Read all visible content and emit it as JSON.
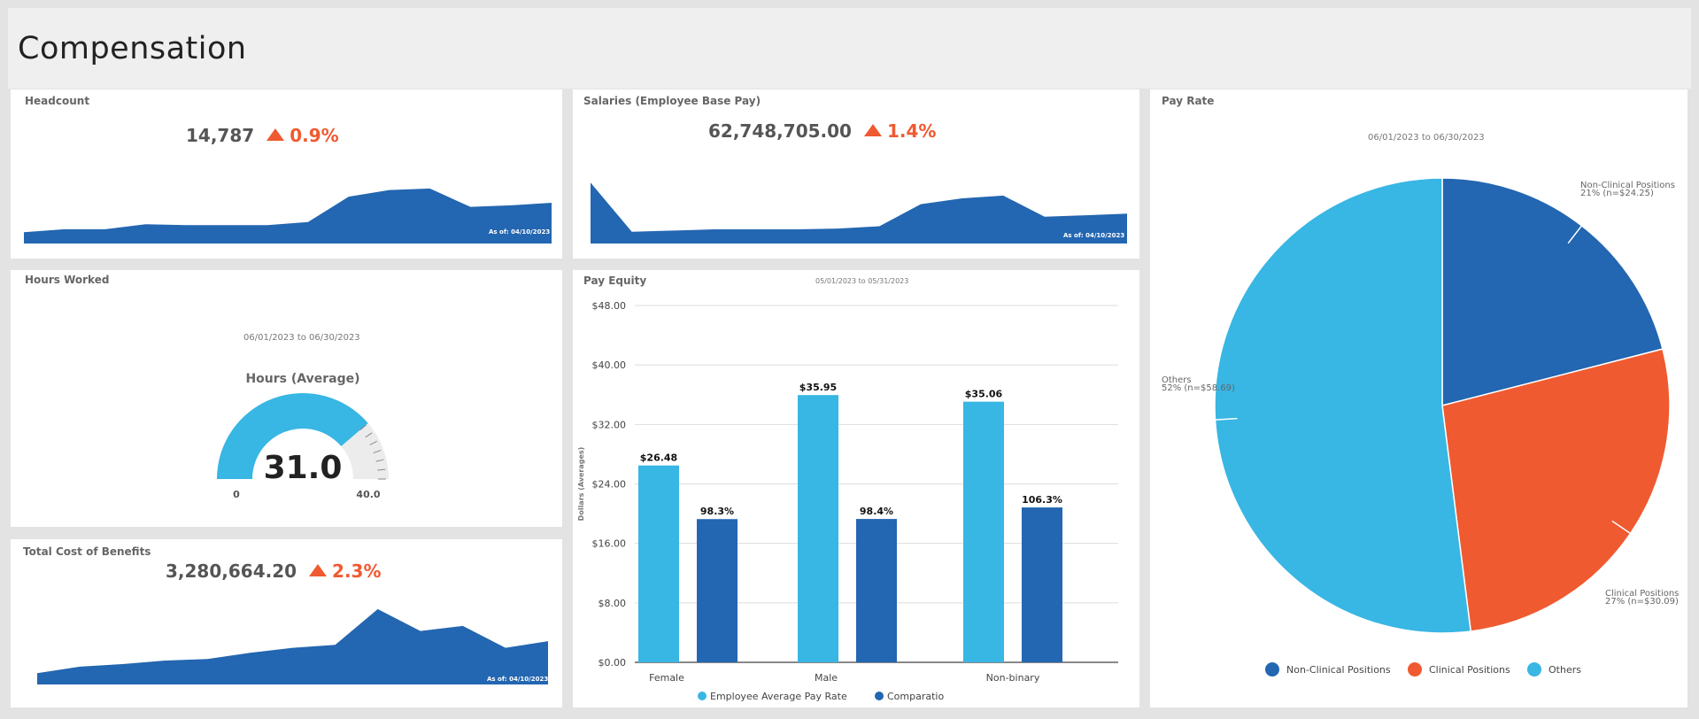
{
  "page": {
    "title": "Compensation"
  },
  "colors": {
    "dark_blue": "#2366b1",
    "light_blue": "#38b6e4",
    "orange": "#f05a30",
    "header_bg": "#efefef",
    "page_bg": "#e3e3e3"
  },
  "headcount": {
    "title": "Headcount",
    "value": "14,787",
    "change": "0.9%",
    "change_direction": "up",
    "as_of": "As of: 04/10/2023"
  },
  "salaries": {
    "title": "Salaries (Employee Base Pay)",
    "value": "62,748,705.00",
    "change": "1.4%",
    "change_direction": "up",
    "as_of": "As of: 04/10/2023"
  },
  "hours_worked": {
    "title": "Hours Worked",
    "date_range": "06/01/2023 to 06/30/2023",
    "gauge_title": "Hours (Average)",
    "value": "31.0",
    "min": "0",
    "max": "40.0",
    "fraction": 0.775
  },
  "benefits": {
    "title": "Total Cost of Benefits",
    "value": "3,280,664.20",
    "change": "2.3%",
    "change_direction": "up",
    "as_of": "As of: 04/10/2023"
  },
  "pay_equity": {
    "title": "Pay Equity",
    "date_range": "05/01/2023 to 05/31/2023"
  },
  "pay_rate": {
    "title": "Pay Rate",
    "date_range": "06/01/2023 to 06/30/2023"
  },
  "chart_data": [
    {
      "type": "area",
      "title": "Headcount",
      "color": "#2366b1",
      "values": [
        0.22,
        0.28,
        0.28,
        0.38,
        0.36,
        0.36,
        0.36,
        0.42,
        0.92,
        1.05,
        1.08,
        0.72,
        0.75,
        0.8
      ]
    },
    {
      "type": "area",
      "title": "Salaries (Employee Base Pay)",
      "color": "#2366b1",
      "values": [
        1.55,
        0.3,
        0.33,
        0.36,
        0.36,
        0.36,
        0.38,
        0.44,
        1.0,
        1.15,
        1.22,
        0.68,
        0.72,
        0.76
      ]
    },
    {
      "type": "area",
      "title": "Total Cost of Benefits",
      "color": "#2366b1",
      "values": [
        0.22,
        0.35,
        0.4,
        0.47,
        0.5,
        0.62,
        0.72,
        0.78,
        1.48,
        1.05,
        1.15,
        0.72,
        0.85
      ]
    },
    {
      "type": "bar",
      "title": "Pay Equity",
      "ylabel": "Dollars (Averages)",
      "categories": [
        "Female",
        "Male",
        "Non-binary"
      ],
      "yticks": [
        "$0.00",
        "$8.00",
        "$16.00",
        "$24.00",
        "$32.00",
        "$40.00",
        "$48.00"
      ],
      "ylim": [
        0,
        48
      ],
      "series": [
        {
          "name": "Employee Average Pay Rate",
          "color": "#38b6e4",
          "values": [
            26.48,
            35.95,
            35.06
          ],
          "labels": [
            "$26.48",
            "$35.95",
            "$35.06"
          ]
        },
        {
          "name": "Comparatio",
          "color": "#2366b1",
          "values": [
            98.3,
            98.4,
            106.3
          ],
          "labels": [
            "98.3%",
            "98.4%",
            "106.3%"
          ]
        }
      ],
      "legend": "bottom",
      "grid": true
    },
    {
      "type": "pie",
      "title": "Pay Rate",
      "slices": [
        {
          "label": "Non-Clinical Positions",
          "value": 21,
          "detail": "21% (n=$24.25)",
          "color": "#2366b1"
        },
        {
          "label": "Clinical Positions",
          "value": 27,
          "detail": "27% (n=$30.09)",
          "color": "#f05a30"
        },
        {
          "label": "Others",
          "value": 52,
          "detail": "52% (n=$58.69)",
          "color": "#38b6e4"
        }
      ],
      "legend": "bottom"
    }
  ]
}
